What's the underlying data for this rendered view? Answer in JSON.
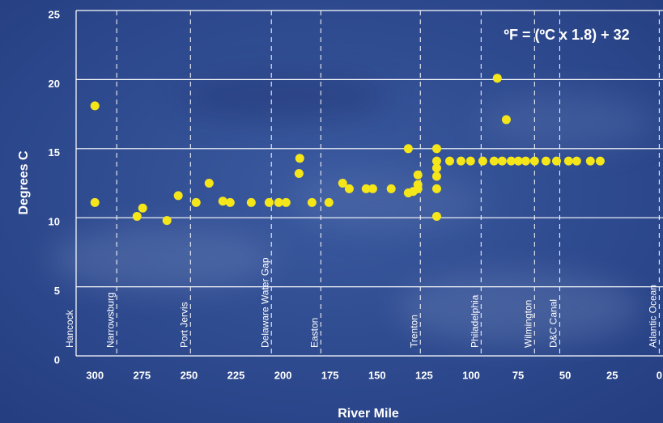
{
  "chart_data": {
    "type": "scatter",
    "annotation": "ºF = (ºC x 1.8) + 32",
    "ylabel": "Degrees C",
    "xlabel": "River Mile",
    "xlim": [
      310,
      -2
    ],
    "ylim": [
      0,
      25
    ],
    "xticks": [
      300,
      275,
      250,
      225,
      200,
      175,
      150,
      125,
      100,
      75,
      50,
      25,
      0
    ],
    "yticks": [
      0,
      5,
      10,
      15,
      20,
      25
    ],
    "grid": true,
    "color": "#f5e61a",
    "landmarks": [
      {
        "label": "Hancock",
        "mile": 310
      },
      {
        "label": "Narrowsburg",
        "mile": 288.4
      },
      {
        "label": "Port Jervis",
        "mile": 249.2
      },
      {
        "label": "Delaware Water Gap",
        "mile": 206.2
      },
      {
        "label": "Easton",
        "mile": 179.9
      },
      {
        "label": "Trenton",
        "mile": 127
      },
      {
        "label": "Philadelphia",
        "mile": 94.7
      },
      {
        "label": "Wilmington",
        "mile": 66.3
      },
      {
        "label": "D&C Canal",
        "mile": 52.9
      },
      {
        "label": "Atlantic Ocean",
        "mile": 0
      }
    ],
    "x": [
      300,
      300,
      277.6,
      274.6,
      261.7,
      255.7,
      246.2,
      239.3,
      232,
      228.1,
      216.9,
      207.4,
      202.3,
      198.4,
      191.1,
      191.5,
      184.6,
      175.6,
      168.3,
      164.8,
      155.8,
      152.3,
      142.5,
      133.4,
      133.4,
      130.8,
      128.3,
      128.3,
      128.3,
      118.3,
      118.3,
      118.3,
      118.3,
      118.3,
      118.3,
      86.1,
      81.3,
      111.4,
      105.4,
      100.3,
      93.8,
      87.8,
      83.5,
      78.7,
      74.9,
      71,
      66.3,
      60.2,
      54.6,
      48.2,
      43.9,
      36.6,
      31.4
    ],
    "values": [
      18.1,
      11.1,
      10.1,
      10.7,
      9.8,
      11.6,
      11.1,
      12.5,
      11.2,
      11.1,
      11.1,
      11.1,
      11.1,
      11.1,
      14.3,
      13.2,
      11.1,
      11.1,
      12.5,
      12.1,
      12.1,
      12.1,
      12.1,
      15.0,
      11.8,
      11.9,
      12.4,
      12.1,
      13.1,
      15.0,
      14.1,
      13.6,
      13.0,
      12.1,
      10.1,
      20.1,
      17.1,
      14.1,
      14.1,
      14.1,
      14.1,
      14.1,
      14.1,
      14.1,
      14.1,
      14.1,
      14.1,
      14.1,
      14.1,
      14.1,
      14.1,
      14.1,
      14.1
    ]
  }
}
